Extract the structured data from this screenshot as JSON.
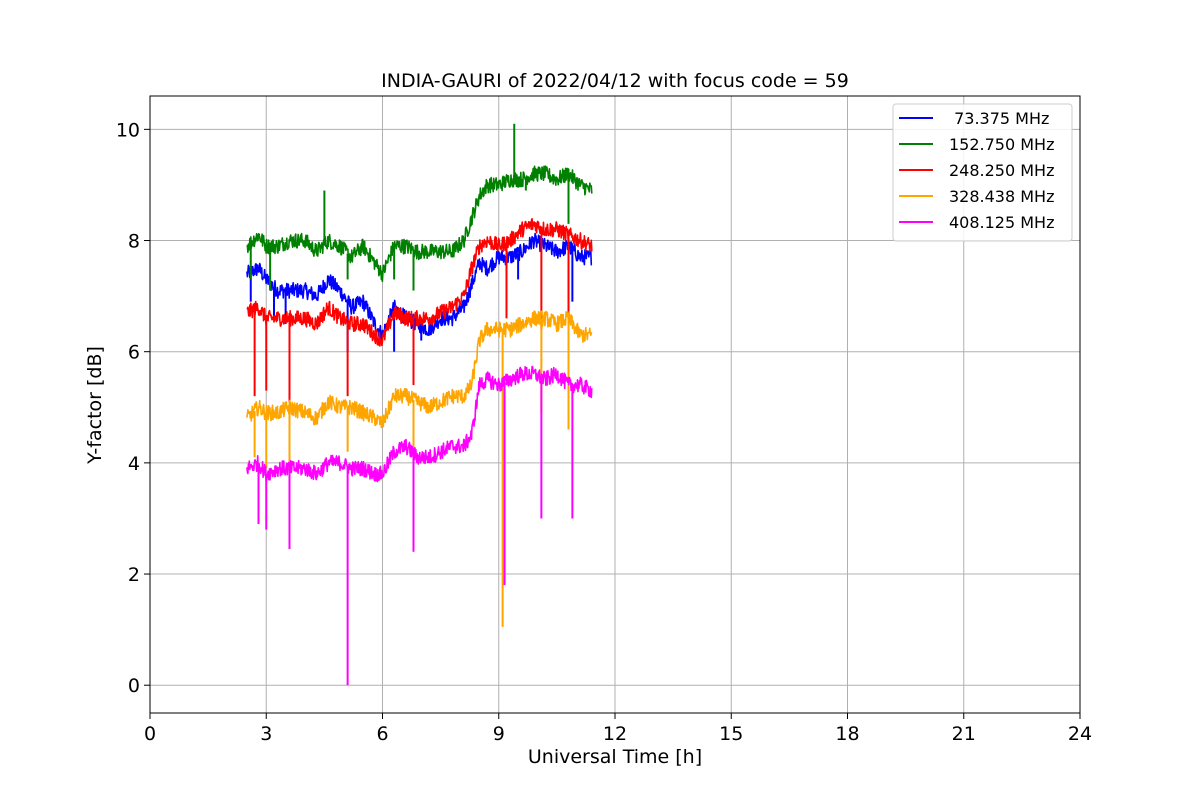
{
  "chart_data": {
    "type": "line",
    "title": "INDIA-GAURI of 2022/04/12 with focus code = 59",
    "xlabel": "Universal Time [h]",
    "ylabel": "Y-factor [dB]",
    "xlim": [
      0,
      24
    ],
    "ylim": [
      -0.5,
      10.6
    ],
    "xticks": [
      0,
      3,
      6,
      9,
      12,
      15,
      18,
      21,
      24
    ],
    "yticks": [
      0,
      2,
      4,
      6,
      8,
      10
    ],
    "xtick_labels": [
      "0",
      "3",
      "6",
      "9",
      "12",
      "15",
      "18",
      "21",
      "24"
    ],
    "ytick_labels": [
      "0",
      "2",
      "4",
      "6",
      "8",
      "10"
    ],
    "grid": true,
    "legend_position": "top-right",
    "series": [
      {
        "name": " 73.375 MHz",
        "color": "#0000ff",
        "x": [
          2.5,
          2.8,
          3.0,
          3.3,
          3.6,
          4.0,
          4.3,
          4.6,
          4.9,
          5.2,
          5.5,
          5.8,
          6.0,
          6.3,
          6.6,
          6.9,
          7.2,
          7.5,
          7.8,
          8.1,
          8.3,
          8.5,
          8.7,
          9.0,
          9.3,
          9.6,
          9.9,
          10.2,
          10.5,
          10.8,
          11.1,
          11.4
        ],
        "y": [
          7.4,
          7.5,
          7.3,
          7.1,
          7.1,
          7.1,
          7.0,
          7.3,
          7.1,
          6.8,
          6.9,
          6.5,
          6.3,
          6.8,
          6.6,
          6.5,
          6.4,
          6.6,
          6.6,
          6.8,
          7.2,
          7.6,
          7.5,
          7.7,
          7.7,
          7.8,
          8.0,
          7.9,
          7.8,
          7.9,
          7.7,
          7.7
        ],
        "spikes": [
          [
            2.6,
            6.9
          ],
          [
            3.2,
            6.6
          ],
          [
            3.5,
            6.5
          ],
          [
            5.1,
            6.0
          ],
          [
            6.3,
            6.0
          ],
          [
            7.0,
            6.2
          ],
          [
            9.5,
            7.3
          ],
          [
            10.9,
            6.9
          ]
        ]
      },
      {
        "name": "152.750 MHz",
        "color": "#008000",
        "x": [
          2.5,
          2.8,
          3.0,
          3.3,
          3.6,
          4.0,
          4.3,
          4.6,
          4.9,
          5.2,
          5.5,
          5.8,
          6.0,
          6.3,
          6.6,
          6.9,
          7.2,
          7.5,
          7.8,
          8.1,
          8.3,
          8.5,
          8.7,
          9.0,
          9.3,
          9.6,
          9.9,
          10.2,
          10.5,
          10.8,
          11.1,
          11.4
        ],
        "y": [
          7.9,
          8.1,
          7.9,
          7.9,
          8.0,
          8.0,
          7.8,
          8.0,
          7.9,
          7.7,
          7.9,
          7.6,
          7.4,
          7.9,
          7.9,
          7.8,
          7.8,
          7.8,
          7.8,
          8.0,
          8.4,
          8.8,
          9.0,
          9.0,
          9.1,
          9.1,
          9.2,
          9.2,
          9.1,
          9.2,
          9.0,
          8.9
        ],
        "spikes": [
          [
            2.6,
            7.3
          ],
          [
            3.1,
            7.1
          ],
          [
            4.5,
            8.9
          ],
          [
            5.1,
            7.3
          ],
          [
            6.3,
            7.3
          ],
          [
            6.8,
            7.1
          ],
          [
            9.4,
            10.1
          ],
          [
            9.7,
            8.9
          ],
          [
            10.8,
            8.3
          ]
        ]
      },
      {
        "name": "248.250 MHz",
        "color": "#ff0000",
        "x": [
          2.5,
          2.8,
          3.0,
          3.3,
          3.6,
          4.0,
          4.3,
          4.6,
          4.9,
          5.2,
          5.5,
          5.8,
          6.0,
          6.3,
          6.6,
          6.9,
          7.2,
          7.5,
          7.8,
          8.1,
          8.3,
          8.5,
          8.7,
          9.0,
          9.3,
          9.6,
          9.9,
          10.2,
          10.5,
          10.8,
          11.1,
          11.4
        ],
        "y": [
          6.7,
          6.8,
          6.6,
          6.6,
          6.6,
          6.6,
          6.5,
          6.8,
          6.6,
          6.5,
          6.5,
          6.3,
          6.2,
          6.7,
          6.6,
          6.6,
          6.6,
          6.7,
          6.8,
          7.0,
          7.5,
          7.9,
          8.0,
          7.9,
          8.0,
          8.2,
          8.3,
          8.2,
          8.2,
          8.1,
          8.0,
          7.9
        ],
        "spikes": [
          [
            2.7,
            5.2
          ],
          [
            3.0,
            5.3
          ],
          [
            3.6,
            5.1
          ],
          [
            5.1,
            5.2
          ],
          [
            6.8,
            5.4
          ],
          [
            9.2,
            6.6
          ],
          [
            10.1,
            6.4
          ],
          [
            10.8,
            6.2
          ]
        ]
      },
      {
        "name": "328.438 MHz",
        "color": "#ffa500",
        "x": [
          2.5,
          2.8,
          3.0,
          3.3,
          3.6,
          4.0,
          4.3,
          4.6,
          4.9,
          5.2,
          5.5,
          5.8,
          6.0,
          6.3,
          6.6,
          6.9,
          7.2,
          7.5,
          7.8,
          8.1,
          8.3,
          8.5,
          8.7,
          9.0,
          9.3,
          9.6,
          9.9,
          10.2,
          10.5,
          10.8,
          11.1,
          11.4
        ],
        "y": [
          4.8,
          5.0,
          4.9,
          4.9,
          5.0,
          4.9,
          4.8,
          5.1,
          5.0,
          5.0,
          4.9,
          4.8,
          4.7,
          5.2,
          5.2,
          5.1,
          5.0,
          5.1,
          5.2,
          5.2,
          5.4,
          6.2,
          6.4,
          6.4,
          6.4,
          6.5,
          6.6,
          6.6,
          6.5,
          6.6,
          6.3,
          6.3
        ],
        "spikes": [
          [
            2.7,
            4.1
          ],
          [
            3.0,
            3.9
          ],
          [
            3.6,
            3.8
          ],
          [
            5.1,
            4.2
          ],
          [
            6.8,
            4.1
          ],
          [
            9.1,
            1.05
          ],
          [
            10.1,
            4.9
          ],
          [
            10.8,
            4.6
          ]
        ]
      },
      {
        "name": "408.125 MHz",
        "color": "#ff00ff",
        "x": [
          2.5,
          2.8,
          3.0,
          3.3,
          3.6,
          4.0,
          4.3,
          4.6,
          4.9,
          5.2,
          5.5,
          5.8,
          6.0,
          6.3,
          6.6,
          6.9,
          7.2,
          7.5,
          7.8,
          8.1,
          8.3,
          8.5,
          8.7,
          9.0,
          9.3,
          9.6,
          9.9,
          10.2,
          10.5,
          10.8,
          11.1,
          11.4
        ],
        "y": [
          3.9,
          4.0,
          3.8,
          3.9,
          3.9,
          3.9,
          3.8,
          4.0,
          4.0,
          3.9,
          3.9,
          3.8,
          3.8,
          4.2,
          4.3,
          4.1,
          4.1,
          4.2,
          4.3,
          4.3,
          4.5,
          5.4,
          5.5,
          5.4,
          5.5,
          5.6,
          5.6,
          5.5,
          5.6,
          5.4,
          5.4,
          5.3
        ],
        "spikes": [
          [
            2.8,
            2.9
          ],
          [
            3.0,
            2.8
          ],
          [
            3.6,
            2.45
          ],
          [
            5.1,
            0.0
          ],
          [
            6.8,
            2.4
          ],
          [
            9.15,
            1.8
          ],
          [
            10.1,
            3.0
          ],
          [
            10.9,
            3.0
          ]
        ]
      }
    ]
  }
}
